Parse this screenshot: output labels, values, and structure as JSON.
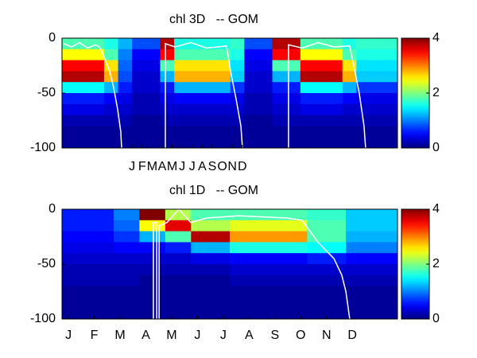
{
  "chart_data": [
    {
      "type": "heatmap",
      "title": "chl 3D   -- GOM",
      "colormap": "jet",
      "xlim": [
        -6,
        27.5
      ],
      "ylim": [
        -100,
        0
      ],
      "yticks": [
        -100,
        -50,
        0
      ],
      "xticks": [
        {
          "value": 1,
          "label": "J"
        },
        {
          "value": 2,
          "label": "F"
        },
        {
          "value": 3,
          "label": "M"
        },
        {
          "value": 4,
          "label": "A"
        },
        {
          "value": 5,
          "label": "M"
        },
        {
          "value": 6,
          "label": "J"
        },
        {
          "value": 7,
          "label": "J"
        },
        {
          "value": 8,
          "label": "A"
        },
        {
          "value": 9,
          "label": "S"
        },
        {
          "value": 10,
          "label": "O"
        },
        {
          "value": 11,
          "label": "N"
        },
        {
          "value": 12,
          "label": "D"
        }
      ],
      "x": [
        -5.3,
        -3.9,
        -2.5,
        -1.1,
        0.3,
        1.7,
        3.1,
        4.5,
        5.9,
        7.3,
        8.7,
        10.1,
        11.5,
        12.9,
        14.3,
        15.7,
        17.1,
        18.5,
        19.9,
        21.3,
        22.7,
        24.1,
        25.5,
        26.9
      ],
      "y": [
        -5,
        -15,
        -25,
        -35,
        -45,
        -55,
        -65,
        -75,
        -85,
        -95
      ],
      "z": [
        [
          1.8,
          2.5,
          3.5,
          3.8,
          1.5,
          0.6,
          0.4,
          0.2,
          0.1,
          0.1
        ],
        [
          1.8,
          2.5,
          3.5,
          3.8,
          1.5,
          0.6,
          0.4,
          0.2,
          0.1,
          0.1
        ],
        [
          1.8,
          2.5,
          3.5,
          3.8,
          1.5,
          0.6,
          0.4,
          0.2,
          0.1,
          0.1
        ],
        [
          1.6,
          1.8,
          2.6,
          2.8,
          1.2,
          0.5,
          0.3,
          0.2,
          0.1,
          0.1
        ],
        [
          1.2,
          1.0,
          0.9,
          0.8,
          0.6,
          0.4,
          0.3,
          0.2,
          0.1,
          0.1
        ],
        [
          0.8,
          0.5,
          0.4,
          0.3,
          0.3,
          0.2,
          0.2,
          0.1,
          0.1,
          0.1
        ],
        [
          0.8,
          0.5,
          0.4,
          0.3,
          0.3,
          0.2,
          0.2,
          0.1,
          0.1,
          0.1
        ],
        [
          3.8,
          3.5,
          1.8,
          1.2,
          0.6,
          0.4,
          0.3,
          0.2,
          0.1,
          0.1
        ],
        [
          1.6,
          1.8,
          2.6,
          2.8,
          1.2,
          0.5,
          0.3,
          0.2,
          0.1,
          0.1
        ],
        [
          1.6,
          1.8,
          2.6,
          2.8,
          1.2,
          0.5,
          0.3,
          0.2,
          0.1,
          0.1
        ],
        [
          1.6,
          1.8,
          2.6,
          2.8,
          1.2,
          0.5,
          0.3,
          0.2,
          0.1,
          0.1
        ],
        [
          1.6,
          1.8,
          2.6,
          2.8,
          1.2,
          0.5,
          0.3,
          0.2,
          0.1,
          0.1
        ],
        [
          1.7,
          1.6,
          1.4,
          1.3,
          0.7,
          0.4,
          0.3,
          0.2,
          0.1,
          0.1
        ],
        [
          0.8,
          0.5,
          0.4,
          0.3,
          0.3,
          0.2,
          0.2,
          0.1,
          0.1,
          0.1
        ],
        [
          0.8,
          0.5,
          0.4,
          0.3,
          0.3,
          0.2,
          0.2,
          0.1,
          0.1,
          0.1
        ],
        [
          3.8,
          3.5,
          1.8,
          1.2,
          0.6,
          0.4,
          0.3,
          0.2,
          0.1,
          0.1
        ],
        [
          3.8,
          3.5,
          1.8,
          1.2,
          0.6,
          0.4,
          0.3,
          0.2,
          0.1,
          0.1
        ],
        [
          1.8,
          2.5,
          3.5,
          3.8,
          1.5,
          0.6,
          0.4,
          0.2,
          0.1,
          0.1
        ],
        [
          1.8,
          2.5,
          3.5,
          3.8,
          1.5,
          0.6,
          0.4,
          0.2,
          0.1,
          0.1
        ],
        [
          1.8,
          2.5,
          3.5,
          3.8,
          1.5,
          0.6,
          0.4,
          0.2,
          0.1,
          0.1
        ],
        [
          1.6,
          1.8,
          2.6,
          2.8,
          1.2,
          0.5,
          0.3,
          0.2,
          0.1,
          0.1
        ],
        [
          1.7,
          1.6,
          1.4,
          1.3,
          0.7,
          0.4,
          0.3,
          0.2,
          0.1,
          0.1
        ],
        [
          1.7,
          1.6,
          1.4,
          1.3,
          0.7,
          0.4,
          0.3,
          0.2,
          0.1,
          0.1
        ],
        [
          1.7,
          1.6,
          1.4,
          1.3,
          0.7,
          0.4,
          0.3,
          0.2,
          0.1,
          0.1
        ]
      ],
      "line": {
        "color": "#ffffff",
        "x": [
          -5.84,
          -5.05,
          -4.25,
          -3.46,
          -2.67,
          -2.27,
          -1.87,
          -1.24,
          -0.84,
          -0.44,
          -0.13,
          -0.05,
          null,
          4.32,
          4.32,
          5.27,
          6.86,
          8.44,
          10.43,
          10.83,
          11.38,
          11.86,
          12.02,
          null,
          16.62,
          16.62,
          17.97,
          19.56,
          21.14,
          22.73,
          23.13,
          23.68,
          24.16,
          24.32
        ],
        "y": [
          -5,
          -8,
          -4,
          -9,
          -6,
          -8,
          -15,
          -30,
          -45,
          -65,
          -85,
          -100,
          null,
          -100,
          -5,
          -8,
          -4,
          -9,
          -7,
          -30,
          -55,
          -80,
          -100,
          null,
          -100,
          -6,
          -9,
          -4,
          -8,
          -7,
          -25,
          -50,
          -80,
          -100
        ]
      },
      "colorbar": {
        "lim": [
          0,
          4
        ],
        "ticks": [
          0,
          2,
          4
        ]
      }
    },
    {
      "type": "heatmap",
      "title": "chl 1D   -- GOM",
      "colormap": "jet",
      "xlim": [
        0.75,
        13.75
      ],
      "ylim": [
        -100,
        0
      ],
      "yticks": [
        -100,
        -50,
        0
      ],
      "xticks": [
        {
          "value": 1,
          "label": "J"
        },
        {
          "value": 2,
          "label": "F"
        },
        {
          "value": 3,
          "label": "M"
        },
        {
          "value": 4,
          "label": "A"
        },
        {
          "value": 5,
          "label": "M"
        },
        {
          "value": 6,
          "label": "J"
        },
        {
          "value": 7,
          "label": "J"
        },
        {
          "value": 8,
          "label": "A"
        },
        {
          "value": 9,
          "label": "S"
        },
        {
          "value": 10,
          "label": "O"
        },
        {
          "value": 11,
          "label": "N"
        },
        {
          "value": 12,
          "label": "D"
        }
      ],
      "x": [
        1.0,
        1.5,
        2.0,
        2.5,
        3.0,
        3.5,
        4.0,
        4.5,
        5.0,
        5.5,
        6.0,
        6.5,
        7.0,
        7.5,
        8.0,
        8.5,
        9.0,
        9.5,
        10.0,
        10.5,
        11.0,
        11.5,
        12.0,
        12.5,
        13.0,
        13.5
      ],
      "y": [
        -5,
        -15,
        -25,
        -35,
        -45,
        -55,
        -65,
        -75,
        -85,
        -95
      ],
      "z": [
        [
          0.6,
          0.6,
          0.5,
          0.4,
          0.3,
          0.2,
          0.2,
          0.1,
          0.1,
          0.1
        ],
        [
          0.6,
          0.6,
          0.5,
          0.4,
          0.3,
          0.2,
          0.2,
          0.1,
          0.1,
          0.1
        ],
        [
          0.6,
          0.6,
          0.5,
          0.4,
          0.3,
          0.2,
          0.2,
          0.1,
          0.1,
          0.1
        ],
        [
          0.6,
          0.6,
          0.5,
          0.4,
          0.3,
          0.2,
          0.2,
          0.1,
          0.1,
          0.1
        ],
        [
          1.0,
          0.9,
          0.7,
          0.5,
          0.3,
          0.2,
          0.2,
          0.1,
          0.1,
          0.1
        ],
        [
          1.0,
          0.9,
          0.7,
          0.5,
          0.3,
          0.2,
          0.2,
          0.1,
          0.1,
          0.1
        ],
        [
          4.0,
          2.5,
          1.2,
          0.5,
          0.3,
          0.2,
          0.1,
          0.1,
          0.1,
          0.1
        ],
        [
          4.0,
          2.5,
          1.2,
          0.5,
          0.3,
          0.2,
          0.1,
          0.1,
          0.1,
          0.1
        ],
        [
          2.2,
          3.6,
          1.8,
          0.6,
          0.3,
          0.2,
          0.1,
          0.1,
          0.1,
          0.1
        ],
        [
          2.2,
          3.6,
          1.8,
          0.6,
          0.3,
          0.2,
          0.1,
          0.1,
          0.1,
          0.1
        ],
        [
          1.8,
          2.2,
          3.8,
          1.2,
          0.4,
          0.2,
          0.1,
          0.1,
          0.1,
          0.1
        ],
        [
          1.8,
          2.2,
          3.8,
          1.2,
          0.4,
          0.2,
          0.1,
          0.1,
          0.1,
          0.1
        ],
        [
          1.8,
          2.2,
          3.8,
          1.2,
          0.4,
          0.2,
          0.1,
          0.1,
          0.1,
          0.1
        ],
        [
          1.8,
          2.4,
          2.9,
          1.6,
          0.5,
          0.3,
          0.2,
          0.1,
          0.1,
          0.1
        ],
        [
          1.8,
          2.4,
          2.9,
          1.6,
          0.5,
          0.3,
          0.2,
          0.1,
          0.1,
          0.1
        ],
        [
          1.8,
          2.4,
          2.9,
          1.6,
          0.5,
          0.3,
          0.2,
          0.1,
          0.1,
          0.1
        ],
        [
          1.8,
          2.4,
          2.9,
          1.6,
          0.5,
          0.3,
          0.2,
          0.1,
          0.1,
          0.1
        ],
        [
          1.8,
          2.4,
          2.9,
          1.6,
          0.5,
          0.3,
          0.2,
          0.1,
          0.1,
          0.1
        ],
        [
          1.8,
          2.4,
          2.9,
          1.6,
          0.5,
          0.3,
          0.2,
          0.1,
          0.1,
          0.1
        ],
        [
          1.7,
          1.8,
          1.8,
          1.5,
          0.6,
          0.3,
          0.2,
          0.1,
          0.1,
          0.1
        ],
        [
          1.7,
          1.8,
          1.8,
          1.5,
          0.6,
          0.3,
          0.2,
          0.1,
          0.1,
          0.1
        ],
        [
          1.7,
          1.8,
          1.8,
          1.5,
          0.6,
          0.3,
          0.2,
          0.1,
          0.1,
          0.1
        ],
        [
          1.3,
          1.3,
          1.2,
          1.0,
          0.5,
          0.3,
          0.2,
          0.1,
          0.1,
          0.1
        ],
        [
          1.3,
          1.3,
          1.2,
          1.0,
          0.5,
          0.3,
          0.2,
          0.1,
          0.1,
          0.1
        ],
        [
          1.3,
          1.3,
          1.2,
          1.0,
          0.5,
          0.3,
          0.2,
          0.1,
          0.1,
          0.1
        ],
        [
          1.3,
          1.3,
          1.2,
          1.0,
          0.5,
          0.3,
          0.2,
          0.1,
          0.1,
          0.1
        ]
      ],
      "line": {
        "color": "#ffffff",
        "x": [
          4.29,
          4.29,
          4.42,
          4.42,
          null,
          4.51,
          4.51,
          4.82,
          5.28,
          5.74,
          6.36,
          7.59,
          9.44,
          10.05,
          10.36,
          10.67,
          11.29,
          11.59,
          11.75,
          11.84,
          11.9
        ],
        "y": [
          -100,
          -12,
          -12,
          -100,
          null,
          -100,
          -15,
          -12,
          0,
          -12,
          -8,
          -6,
          -8,
          -10,
          -20,
          -30,
          -45,
          -60,
          -75,
          -90,
          -100
        ]
      },
      "colorbar": {
        "lim": [
          0,
          4
        ],
        "ticks": [
          0,
          2,
          4
        ]
      }
    }
  ]
}
